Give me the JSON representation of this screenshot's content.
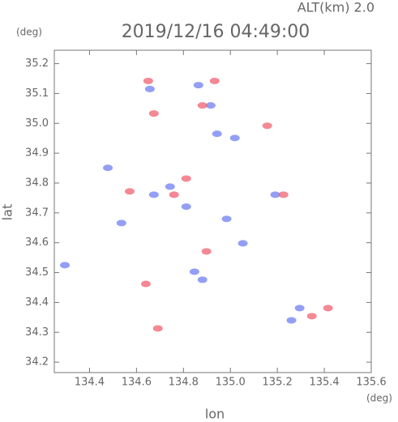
{
  "chart_data": {
    "type": "scatter",
    "title": "2019/12/16 04:49:00",
    "subtitle": "ALT(km) 2.0",
    "x_label": "lon",
    "y_label": "lat",
    "x_unit": "(deg)",
    "y_unit": "(deg)",
    "xlim": [
      134.25,
      135.6
    ],
    "ylim": [
      34.165,
      35.245
    ],
    "xticks": [
      134.4,
      134.6,
      134.8,
      {
        "value": 135.0,
        "label": "135.0"
      },
      135.2,
      135.4,
      135.6
    ],
    "yticks": [
      34.2,
      34.3,
      34.4,
      34.5,
      34.6,
      34.7,
      34.8,
      34.9,
      {
        "value": 35.0,
        "label": "35.0"
      },
      35.1,
      35.2
    ],
    "series": [
      {
        "color": "#6f7ff0",
        "x": [
          134.295,
          134.478,
          134.743,
          134.812,
          134.674,
          134.847,
          134.881,
          135.295,
          135.26,
          134.943,
          135.019,
          134.864,
          134.657,
          134.916,
          135.053,
          135.191,
          134.984,
          134.536
        ],
        "y": [
          34.525,
          34.851,
          34.788,
          34.721,
          34.761,
          34.503,
          34.476,
          34.381,
          34.34,
          34.965,
          34.951,
          35.128,
          35.115,
          35.06,
          34.598,
          34.761,
          34.68,
          34.666
        ]
      },
      {
        "color": "#f06070",
        "x": [
          134.65,
          134.933,
          134.674,
          134.881,
          135.157,
          134.571,
          134.76,
          134.64,
          135.416,
          135.347,
          134.898,
          134.691,
          135.226,
          134.812
        ],
        "y": [
          35.142,
          35.142,
          35.033,
          35.06,
          34.992,
          34.772,
          34.761,
          34.462,
          34.381,
          34.354,
          34.571,
          34.313,
          34.761,
          34.815
        ]
      }
    ]
  }
}
